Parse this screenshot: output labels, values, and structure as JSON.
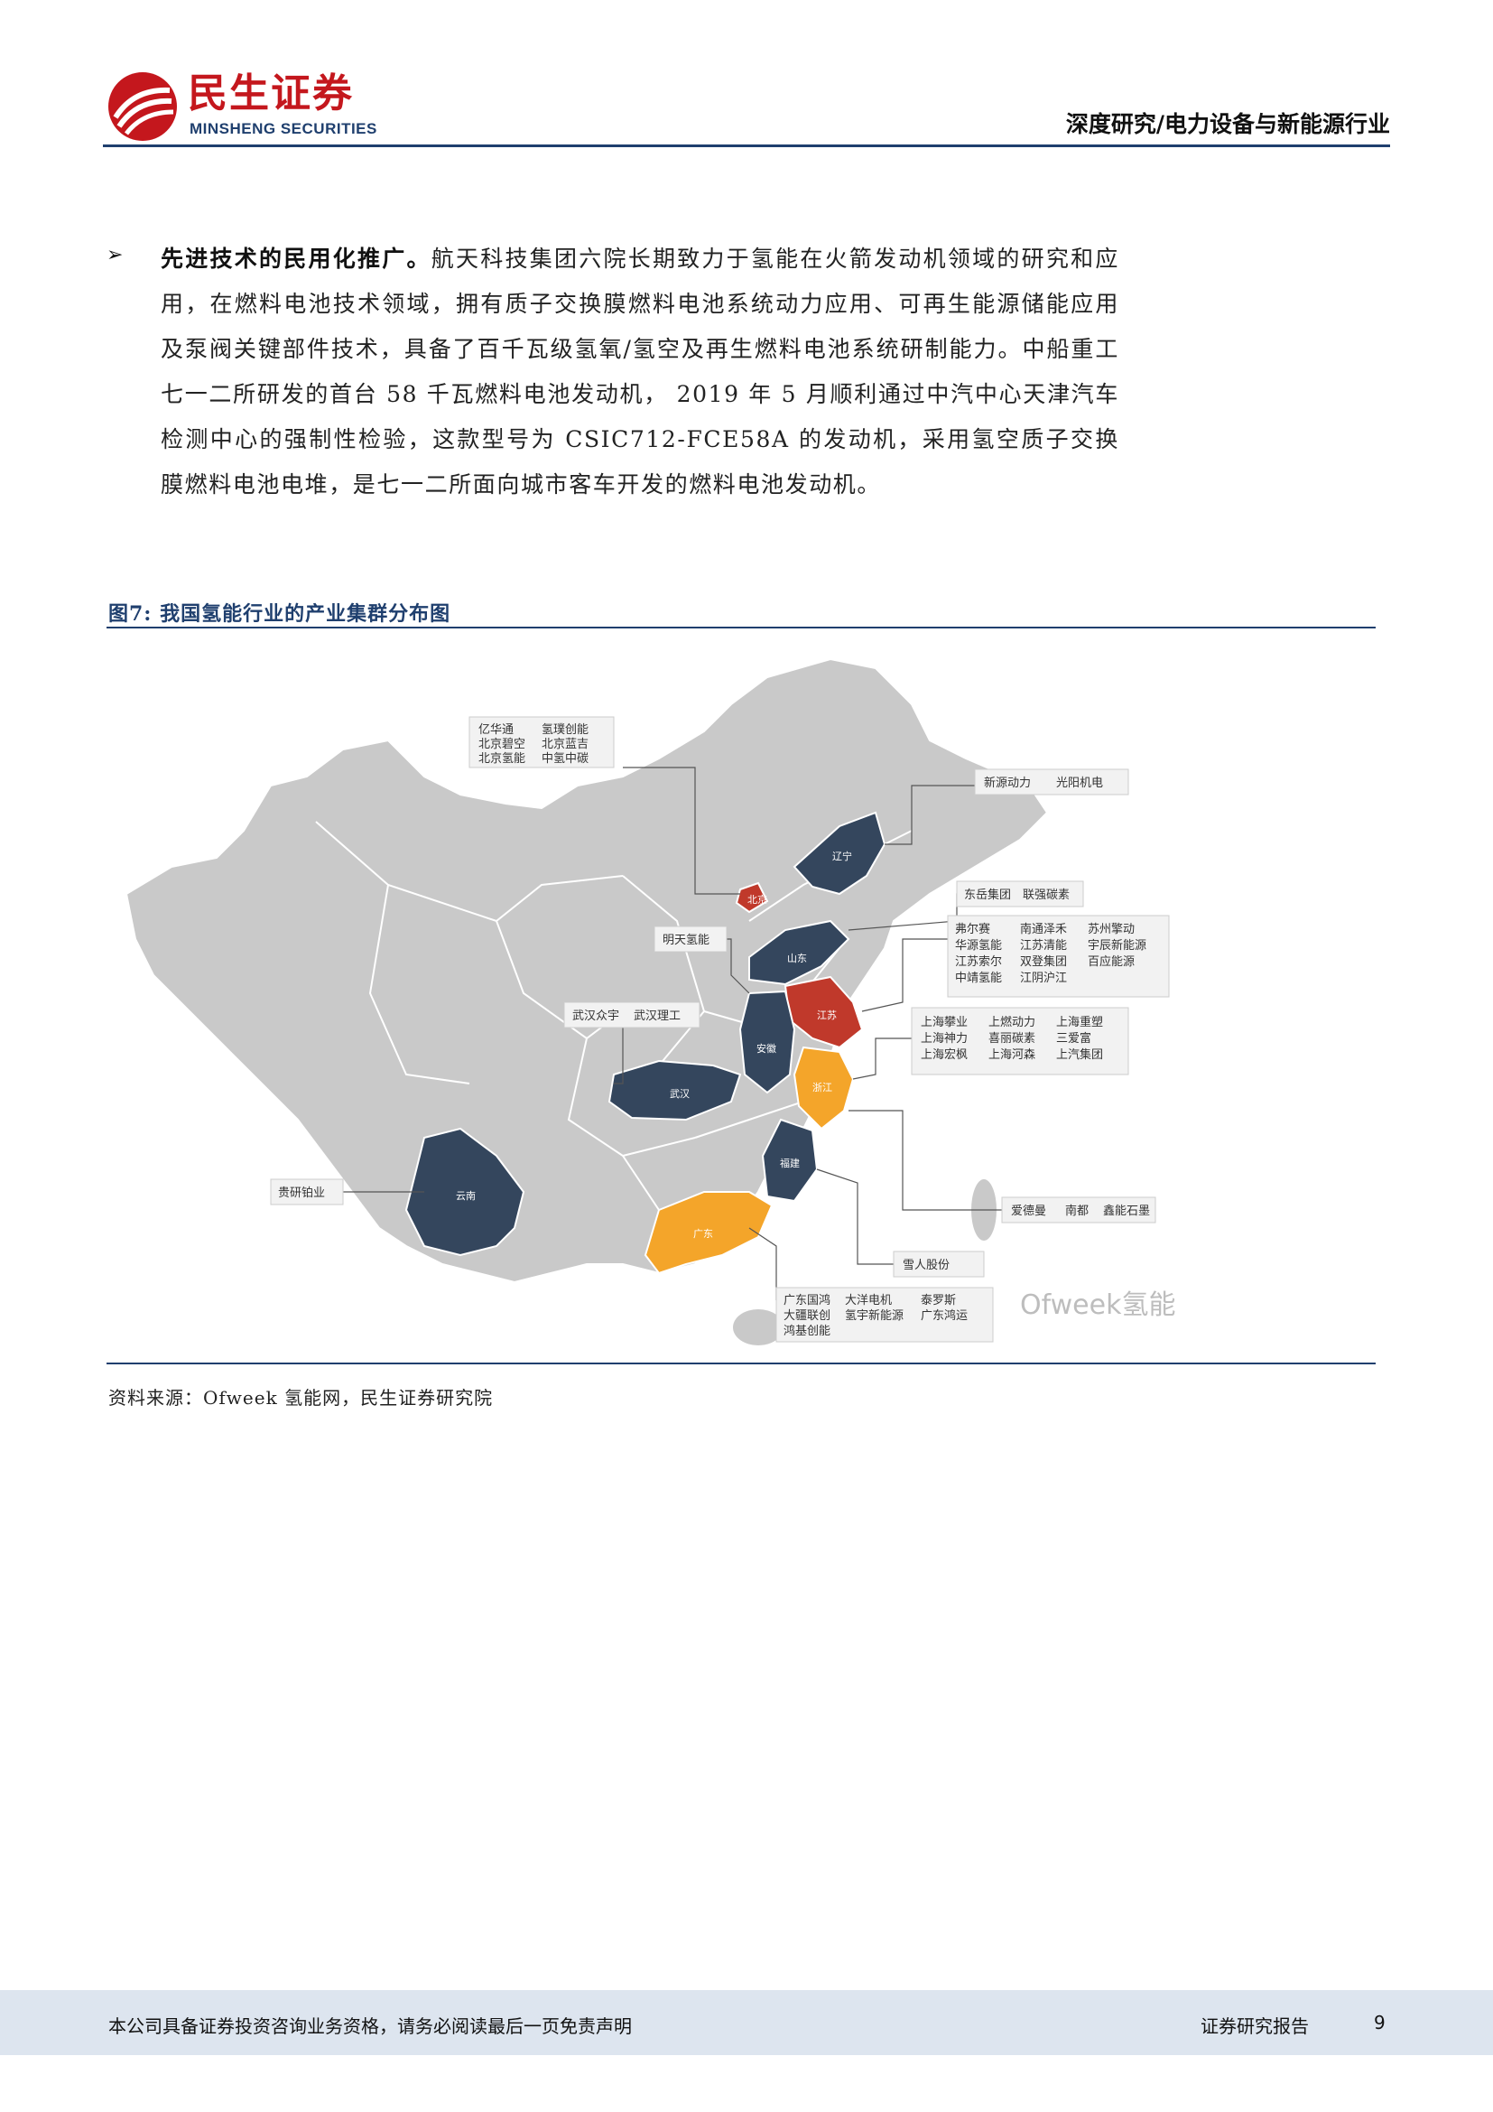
{
  "header": {
    "brand_cn": "民生证券",
    "brand_en": "MINSHENG SECURITIES",
    "title": "深度研究/电力设备与新能源行业"
  },
  "body": {
    "bullet": "➢",
    "lead": "先进技术的民用化推广。",
    "text": "航天科技集团六院长期致力于氢能在火箭发动机领域的研究和应用，在燃料电池技术领域，拥有质子交换膜燃料电池系统动力应用、可再生能源储能应用及泵阀关键部件技术，具备了百千瓦级氢氧/氢空及再生燃料电池系统研制能力。中船重工七一二所研发的首台 58 千瓦燃料电池发动机， 2019 年 5 月顺利通过中汽中心天津汽车检测中心的强制性检验，这款型号为 CSIC712-FCE58A 的发动机，采用氢空质子交换膜燃料电池电堆，是七一二所面向城市客车开发的燃料电池发动机。"
  },
  "figure": {
    "title": "图7: 我国氢能行业的产业集群分布图",
    "source": "资料来源：Ofweek 氢能网，民生证券研究院",
    "watermark": "Ofweek氢能",
    "colors": {
      "base": "#c9c9c9",
      "navy": "#34465d",
      "red": "#c0392b",
      "orange": "#f4a52a",
      "border": "#ffffff"
    },
    "provinces": {
      "beijing": "北京",
      "liaoning": "辽宁",
      "shandong": "山东",
      "jiangsu": "江苏",
      "anhui": "安徽",
      "wuhan": "武汉",
      "zhejiang": "浙江",
      "fujian": "福建",
      "yunnan": "云南",
      "guangdong": "广东"
    },
    "clusters": {
      "beijing": [
        "亿华通",
        "氢璞创能",
        "北京碧空",
        "北京蓝吉",
        "北京氢能",
        "中氢中碳"
      ],
      "liaoning": [
        "新源动力",
        "光阳机电"
      ],
      "shandong": [
        "东岳集团",
        "联强碳素"
      ],
      "jiangsu": [
        "弗尔赛",
        "南通泽禾",
        "苏州擎动",
        "华源氢能",
        "江苏清能",
        "宇辰新能源",
        "江苏索尔",
        "双登集团",
        "百应能源",
        "中靖氢能",
        "江阴沪江"
      ],
      "anhui": [
        "明天氢能"
      ],
      "wuhan": [
        "武汉众宇",
        "武汉理工"
      ],
      "shanghai": [
        "上海攀业",
        "上燃动力",
        "上海重塑",
        "上海神力",
        "喜丽碳素",
        "三爱富",
        "上海宏枫",
        "上海河森",
        "上汽集团"
      ],
      "zhejiang": [
        "爱德曼",
        "南都",
        "鑫能石墨"
      ],
      "fujian": [
        "雪人股份"
      ],
      "yunnan": [
        "贵研铂业"
      ],
      "guangdong": [
        "广东国鸿",
        "大洋电机",
        "泰罗斯",
        "大疆联创",
        "氢宇新能源",
        "广东鸿运",
        "鸿基创能"
      ]
    }
  },
  "footer": {
    "disclaimer": "本公司具备证券投资咨询业务资格，请务必阅读最后一页免责声明",
    "report_type": "证券研究报告",
    "page": "9"
  }
}
